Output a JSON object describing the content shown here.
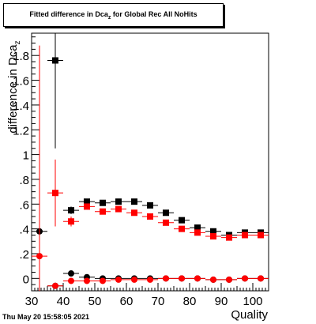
{
  "title": {
    "main": "Fitted difference in Dca",
    "sub": "z",
    "suffix": " for Global Rec All NoHits"
  },
  "footer": {
    "timestamp": "Thu May 20 15:58:05 2021"
  },
  "colors": {
    "black_series": "#000000",
    "red_series": "#ff0000",
    "frame": "#000000",
    "background": "#ffffff"
  },
  "chart_data": {
    "type": "scatter",
    "title": "Fitted difference in Dca_z for Global Rec All NoHits",
    "xlabel": "Quality",
    "ylabel": "difference in Dca_z",
    "xlim": [
      30,
      105
    ],
    "ylim": [
      -0.1,
      1.98
    ],
    "x_ticks": [
      30,
      40,
      50,
      60,
      70,
      80,
      90,
      100
    ],
    "y_ticks": [
      0,
      0.2,
      0.4,
      0.6,
      0.8,
      1,
      1.2,
      1.4,
      1.6,
      1.8
    ],
    "grid": false,
    "series": [
      {
        "color": "#000000",
        "marker": "square",
        "points": [
          {
            "x": 37.5,
            "y": 1.76,
            "yerr": 0.71,
            "xerr": 2.5
          },
          {
            "x": 42.5,
            "y": 0.55,
            "yerr": 0.03,
            "xerr": 2.5
          },
          {
            "x": 47.5,
            "y": 0.62,
            "yerr": 0.02,
            "xerr": 2.5
          },
          {
            "x": 52.5,
            "y": 0.61,
            "yerr": 0.02,
            "xerr": 2.5
          },
          {
            "x": 57.5,
            "y": 0.62,
            "yerr": 0.02,
            "xerr": 2.5
          },
          {
            "x": 62.5,
            "y": 0.62,
            "yerr": 0.02,
            "xerr": 2.5
          },
          {
            "x": 67.5,
            "y": 0.59,
            "yerr": 0.02,
            "xerr": 2.5
          },
          {
            "x": 72.5,
            "y": 0.53,
            "yerr": 0.02,
            "xerr": 2.5
          },
          {
            "x": 77.5,
            "y": 0.47,
            "yerr": 0.02,
            "xerr": 2.5
          },
          {
            "x": 82.5,
            "y": 0.41,
            "yerr": 0.02,
            "xerr": 2.5
          },
          {
            "x": 87.5,
            "y": 0.38,
            "yerr": 0.02,
            "xerr": 2.5
          },
          {
            "x": 92.5,
            "y": 0.35,
            "yerr": 0.02,
            "xerr": 2.5
          },
          {
            "x": 97.5,
            "y": 0.37,
            "yerr": 0.02,
            "xerr": 2.5
          },
          {
            "x": 102.5,
            "y": 0.37,
            "yerr": 0.02,
            "xerr": 2.5
          }
        ]
      },
      {
        "color": "#ff0000",
        "marker": "square",
        "points": [
          {
            "x": 37.5,
            "y": 0.69,
            "yerr": 0.27,
            "xerr": 2.5
          },
          {
            "x": 42.5,
            "y": 0.46,
            "yerr": 0.04,
            "xerr": 2.5
          },
          {
            "x": 47.5,
            "y": 0.58,
            "yerr": 0.02,
            "xerr": 2.5
          },
          {
            "x": 52.5,
            "y": 0.54,
            "yerr": 0.02,
            "xerr": 2.5
          },
          {
            "x": 57.5,
            "y": 0.56,
            "yerr": 0.02,
            "xerr": 2.5
          },
          {
            "x": 62.5,
            "y": 0.53,
            "yerr": 0.02,
            "xerr": 2.5
          },
          {
            "x": 67.5,
            "y": 0.5,
            "yerr": 0.02,
            "xerr": 2.5
          },
          {
            "x": 72.5,
            "y": 0.45,
            "yerr": 0.02,
            "xerr": 2.5
          },
          {
            "x": 77.5,
            "y": 0.4,
            "yerr": 0.02,
            "xerr": 2.5
          },
          {
            "x": 82.5,
            "y": 0.37,
            "yerr": 0.02,
            "xerr": 2.5
          },
          {
            "x": 87.5,
            "y": 0.34,
            "yerr": 0.02,
            "xerr": 2.5
          },
          {
            "x": 92.5,
            "y": 0.33,
            "yerr": 0.02,
            "xerr": 2.5
          },
          {
            "x": 97.5,
            "y": 0.35,
            "yerr": 0.02,
            "xerr": 2.5
          },
          {
            "x": 102.5,
            "y": 0.35,
            "yerr": 0.02,
            "xerr": 2.5
          }
        ]
      },
      {
        "color": "#000000",
        "marker": "circle",
        "points": [
          {
            "x": 32.5,
            "y": 0.38,
            "yerr": 0.0,
            "xerr": 2.5
          },
          {
            "x": 37.5,
            "y": -0.06,
            "yerr": 0.0,
            "xerr": 2.5
          },
          {
            "x": 42.5,
            "y": 0.04,
            "yerr": 0.02,
            "xerr": 2.5
          },
          {
            "x": 47.5,
            "y": 0.01,
            "yerr": 0.01,
            "xerr": 2.5
          },
          {
            "x": 52.5,
            "y": 0.0,
            "yerr": 0.01,
            "xerr": 2.5
          },
          {
            "x": 57.5,
            "y": 0.0,
            "yerr": 0.01,
            "xerr": 2.5
          },
          {
            "x": 62.5,
            "y": 0.0,
            "yerr": 0.01,
            "xerr": 2.5
          },
          {
            "x": 67.5,
            "y": 0.0,
            "yerr": 0.01,
            "xerr": 2.5
          },
          {
            "x": 72.5,
            "y": 0.0,
            "yerr": 0.01,
            "xerr": 2.5
          },
          {
            "x": 77.5,
            "y": 0.0,
            "yerr": 0.01,
            "xerr": 2.5
          },
          {
            "x": 82.5,
            "y": 0.0,
            "yerr": 0.01,
            "xerr": 2.5
          },
          {
            "x": 87.5,
            "y": -0.01,
            "yerr": 0.01,
            "xerr": 2.5
          },
          {
            "x": 92.5,
            "y": -0.01,
            "yerr": 0.01,
            "xerr": 2.5
          },
          {
            "x": 97.5,
            "y": 0.0,
            "yerr": 0.01,
            "xerr": 2.5
          },
          {
            "x": 102.5,
            "y": 0.0,
            "yerr": 0.01,
            "xerr": 2.5
          }
        ]
      },
      {
        "color": "#ff0000",
        "marker": "circle",
        "points": [
          {
            "x": 32.5,
            "y": 0.18,
            "yerr": 1.7,
            "xerr": 2.5
          },
          {
            "x": 37.5,
            "y": -0.06,
            "yerr": 0.0,
            "xerr": 2.5
          },
          {
            "x": 42.5,
            "y": -0.02,
            "yerr": 0.02,
            "xerr": 2.5
          },
          {
            "x": 47.5,
            "y": -0.02,
            "yerr": 0.01,
            "xerr": 2.5
          },
          {
            "x": 52.5,
            "y": -0.02,
            "yerr": 0.01,
            "xerr": 2.5
          },
          {
            "x": 57.5,
            "y": -0.01,
            "yerr": 0.01,
            "xerr": 2.5
          },
          {
            "x": 62.5,
            "y": -0.01,
            "yerr": 0.01,
            "xerr": 2.5
          },
          {
            "x": 67.5,
            "y": -0.01,
            "yerr": 0.01,
            "xerr": 2.5
          },
          {
            "x": 72.5,
            "y": 0.0,
            "yerr": 0.01,
            "xerr": 2.5
          },
          {
            "x": 77.5,
            "y": 0.0,
            "yerr": 0.01,
            "xerr": 2.5
          },
          {
            "x": 82.5,
            "y": 0.0,
            "yerr": 0.01,
            "xerr": 2.5
          },
          {
            "x": 87.5,
            "y": -0.01,
            "yerr": 0.01,
            "xerr": 2.5
          },
          {
            "x": 92.5,
            "y": -0.01,
            "yerr": 0.01,
            "xerr": 2.5
          },
          {
            "x": 97.5,
            "y": 0.0,
            "yerr": 0.01,
            "xerr": 2.5
          },
          {
            "x": 102.5,
            "y": 0.0,
            "yerr": 0.01,
            "xerr": 2.5
          }
        ]
      }
    ]
  }
}
